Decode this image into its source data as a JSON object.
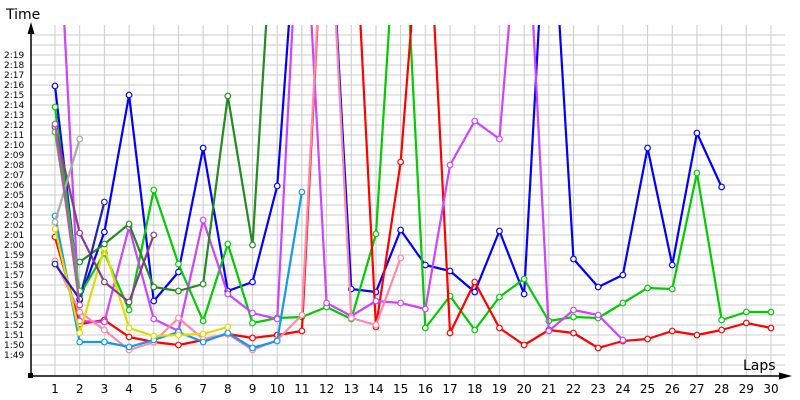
{
  "chart_data": {
    "type": "line",
    "title": "",
    "xlabel": "Laps",
    "ylabel": "Time",
    "x": [
      1,
      2,
      3,
      4,
      5,
      6,
      7,
      8,
      9,
      10,
      11,
      12,
      13,
      14,
      15,
      16,
      17,
      18,
      19,
      20,
      21,
      22,
      23,
      24,
      25,
      26,
      27,
      28,
      29,
      30
    ],
    "y_tick_labels": [
      "1:49",
      "1:50",
      "1:51",
      "1:52",
      "1:53",
      "1:54",
      "1:55",
      "1:56",
      "1:57",
      "1:58",
      "1:59",
      "2:00",
      "2:01",
      "2:02",
      "2:03",
      "2:04",
      "2:05",
      "2:06",
      "2:07",
      "2:08",
      "2:09",
      "2:10",
      "2:11",
      "2:12",
      "2:13",
      "2:14",
      "2:15",
      "2:16",
      "2:17",
      "2:18",
      "2:19"
    ],
    "ylim_seconds": [
      107,
      140
    ],
    "grid": true,
    "legend": null,
    "value_unit": "seconds (lap time; values above ~140 s are off-chart)",
    "series": [
      {
        "name": "blue",
        "color": "#0000ff",
        "values": [
          135.9,
          114.5,
          121.3,
          135.0,
          114.4,
          117.3,
          129.7,
          115.4,
          116.3,
          125.9,
          160,
          160,
          115.6,
          115.3,
          121.5,
          118.0,
          117.4,
          115.3,
          121.4,
          115.1,
          160,
          118.6,
          115.8,
          117.0,
          129.7,
          118.0,
          131.2,
          125.8,
          null,
          null
        ]
      },
      {
        "name": "green",
        "color": "#00cc00",
        "values": [
          133.8,
          115.0,
          119.2,
          113.5,
          125.5,
          118.1,
          112.4,
          120.1,
          112.2,
          112.7,
          112.8,
          113.8,
          112.6,
          121.1,
          160,
          111.7,
          114.9,
          111.5,
          114.8,
          116.6,
          112.4,
          112.8,
          112.7,
          114.2,
          115.7,
          115.6,
          127.2,
          112.5,
          113.3,
          113.3
        ]
      },
      {
        "name": "red",
        "color": "#ff0000",
        "values": [
          120.8,
          112.1,
          112.5,
          110.8,
          110.3,
          110.0,
          110.5,
          111.1,
          110.7,
          111.0,
          111.4,
          160,
          160,
          111.8,
          128.3,
          160,
          111.2,
          116.3,
          111.7,
          110.0,
          111.5,
          111.2,
          109.7,
          110.4,
          110.6,
          111.4,
          111.0,
          111.5,
          112.2,
          111.7
        ]
      },
      {
        "name": "magenta",
        "color": "#cc44ff",
        "values": [
          160,
          112.4,
          112.3,
          121.8,
          112.6,
          111.4,
          122.5,
          115.1,
          113.2,
          112.6,
          160,
          114.2,
          112.9,
          114.4,
          114.2,
          113.6,
          128.0,
          132.4,
          130.6,
          160,
          111.4,
          113.5,
          113.0,
          110.5,
          null,
          null,
          null,
          null,
          null,
          null
        ]
      },
      {
        "name": "pink",
        "color": "#ff88aa",
        "values": [
          118.4,
          113.3,
          111.5,
          109.5,
          110.3,
          112.7,
          110.6,
          111.1,
          109.5,
          110.5,
          113.0,
          160,
          112.7,
          112.0,
          118.7,
          null,
          null,
          null,
          null,
          null,
          null,
          null,
          null,
          null,
          null,
          null,
          null,
          null,
          null,
          null
        ]
      },
      {
        "name": "sky-blue",
        "color": "#1199ee",
        "values": [
          122.9,
          110.3,
          110.3,
          109.8,
          110.5,
          111.3,
          110.3,
          111.2,
          109.7,
          110.4,
          125.3,
          null,
          null,
          null,
          null,
          null,
          null,
          null,
          null,
          null,
          null,
          null,
          null,
          null,
          null,
          null,
          null,
          null,
          null,
          null
        ]
      },
      {
        "name": "yellow",
        "color": "#dddd00",
        "values": [
          121.6,
          111.2,
          119.7,
          111.7,
          110.9,
          111.0,
          111.1,
          111.8,
          null,
          null,
          null,
          null,
          null,
          null,
          null,
          null,
          null,
          null,
          null,
          null,
          null,
          null,
          null,
          null,
          null,
          null,
          null,
          null,
          null,
          null
        ]
      },
      {
        "name": "dark-green",
        "color": "#228B22",
        "values": [
          null,
          118.3,
          120.1,
          122.1,
          115.8,
          115.4,
          116.1,
          134.9,
          120.0,
          160,
          null,
          null,
          null,
          null,
          null,
          null,
          null,
          null,
          null,
          null,
          null,
          null,
          null,
          null,
          null,
          null,
          null,
          null,
          null,
          null
        ]
      },
      {
        "name": "dark-purple",
        "color": "#8B3A8B",
        "values": [
          131.8,
          121.2,
          116.3,
          114.3,
          121.0,
          null,
          null,
          null,
          null,
          null,
          null,
          null,
          null,
          null,
          null,
          null,
          null,
          null,
          null,
          null,
          null,
          null,
          null,
          null,
          null,
          null,
          null,
          null,
          null,
          null
        ]
      },
      {
        "name": "navy",
        "color": "#2222aa",
        "values": [
          118.1,
          114.6,
          124.3,
          null,
          null,
          null,
          null,
          null,
          null,
          null,
          null,
          null,
          null,
          null,
          null,
          null,
          null,
          null,
          null,
          null,
          null,
          null,
          null,
          null,
          null,
          null,
          null,
          null,
          null,
          null
        ]
      },
      {
        "name": "gray",
        "color": "#aaaaaa",
        "values": [
          122.3,
          130.6,
          null,
          null,
          null,
          null,
          null,
          null,
          null,
          null,
          null,
          null,
          null,
          null,
          null,
          null,
          null,
          null,
          null,
          null,
          null,
          null,
          null,
          null,
          null,
          null,
          null,
          null,
          null,
          null
        ]
      },
      {
        "name": "light-green",
        "color": "#33cc33",
        "values": [
          131.3,
          115.4,
          null,
          null,
          null,
          null,
          null,
          null,
          null,
          null,
          null,
          null,
          null,
          null,
          null,
          null,
          null,
          null,
          null,
          null,
          null,
          null,
          null,
          null,
          null,
          null,
          null,
          null,
          null,
          null
        ]
      },
      {
        "name": "mauve",
        "color": "#bb55aa",
        "values": [
          132.1,
          114.0,
          null,
          null,
          null,
          null,
          null,
          null,
          null,
          null,
          null,
          null,
          null,
          null,
          null,
          null,
          null,
          null,
          null,
          null,
          null,
          null,
          null,
          null,
          null,
          null,
          null,
          null,
          null,
          null
        ]
      }
    ]
  },
  "axes": {
    "y_title": "Time",
    "x_title": "Laps"
  }
}
